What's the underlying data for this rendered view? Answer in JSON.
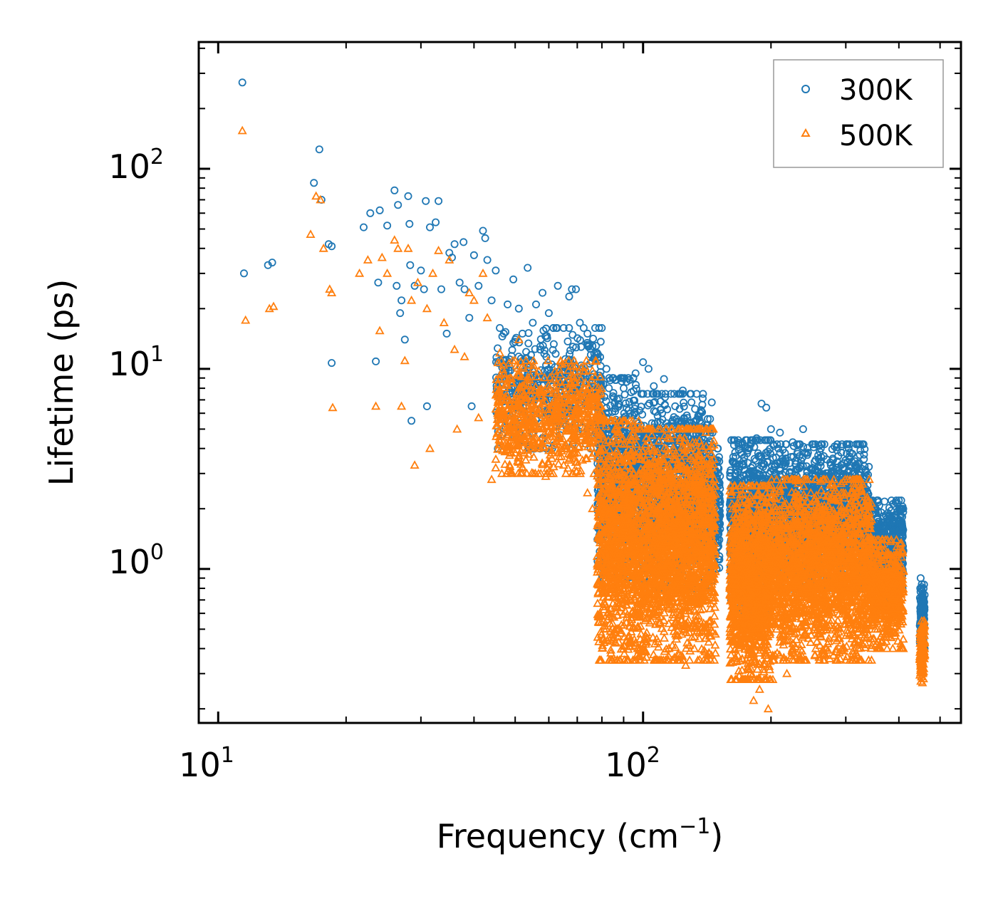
{
  "chart_data": {
    "type": "scatter",
    "xscale": "log",
    "yscale": "log",
    "xlim": [
      9,
      560
    ],
    "ylim": [
      0.17,
      430
    ],
    "xlabel": {
      "text": "Frequency (cm",
      "sup": "−1",
      "suffix": ")"
    },
    "ylabel": "Lifetime (ps)",
    "x_ticks": [
      {
        "base": "10",
        "exp": "1",
        "value": 10
      },
      {
        "base": "10",
        "exp": "2",
        "value": 100
      }
    ],
    "y_ticks": [
      {
        "base": "10",
        "exp": "0",
        "value": 1
      },
      {
        "base": "10",
        "exp": "1",
        "value": 10
      },
      {
        "base": "10",
        "exp": "2",
        "value": 100
      }
    ],
    "legend": {
      "position": "top-right",
      "entries": [
        "300K",
        "500K"
      ]
    },
    "series": [
      {
        "name": "300K",
        "marker": "circle",
        "color": "#1f77b4",
        "points": [
          [
            11.4,
            270
          ],
          [
            11.5,
            30
          ],
          [
            13.1,
            33
          ],
          [
            13.4,
            34
          ],
          [
            16.8,
            85
          ],
          [
            17.3,
            125
          ],
          [
            17.5,
            70
          ],
          [
            18.2,
            42
          ],
          [
            18.5,
            41
          ],
          [
            18.5,
            10.7
          ],
          [
            22,
            51
          ],
          [
            22.8,
            60
          ],
          [
            23.5,
            10.9
          ],
          [
            23.8,
            27
          ],
          [
            24,
            62
          ],
          [
            25,
            52
          ],
          [
            26,
            78
          ],
          [
            26.3,
            26
          ],
          [
            26.5,
            66
          ],
          [
            26.8,
            19
          ],
          [
            27,
            22
          ],
          [
            27.5,
            14
          ],
          [
            28,
            73
          ],
          [
            28.2,
            53
          ],
          [
            28.3,
            33
          ],
          [
            28.5,
            5.5
          ],
          [
            29,
            26
          ],
          [
            30,
            31
          ],
          [
            30.5,
            25
          ],
          [
            30.8,
            69
          ],
          [
            31,
            6.5
          ],
          [
            31.5,
            51
          ],
          [
            32.5,
            54
          ],
          [
            33,
            69
          ],
          [
            33.5,
            25
          ],
          [
            34.5,
            15
          ],
          [
            35,
            38
          ],
          [
            35.5,
            36
          ],
          [
            36,
            42
          ],
          [
            37,
            27
          ],
          [
            37.8,
            43
          ],
          [
            38,
            25
          ],
          [
            39,
            18
          ],
          [
            39.5,
            6.5
          ],
          [
            40,
            37
          ],
          [
            41,
            26
          ],
          [
            42,
            49
          ],
          [
            42.5,
            45
          ],
          [
            43,
            35
          ],
          [
            44,
            22
          ],
          [
            45,
            31
          ],
          [
            46,
            16
          ],
          [
            47,
            15
          ],
          [
            48,
            21
          ],
          [
            49.5,
            28
          ],
          [
            51,
            20
          ],
          [
            52,
            15
          ],
          [
            53.5,
            32
          ],
          [
            55,
            17
          ],
          [
            56,
            21
          ],
          [
            58,
            24
          ],
          [
            60,
            19
          ],
          [
            61.5,
            16
          ],
          [
            63,
            26
          ],
          [
            65,
            16
          ],
          [
            67,
            23
          ],
          [
            68,
            25
          ],
          [
            69.5,
            25
          ],
          [
            71,
            17
          ],
          [
            74,
            15
          ],
          [
            76,
            13
          ],
          [
            78,
            12
          ],
          [
            82,
            10
          ],
          [
            86,
            8.8
          ],
          [
            90,
            8
          ],
          [
            96,
            9.5
          ],
          [
            100,
            10.8
          ],
          [
            103,
            10
          ],
          [
            106,
            8.2
          ],
          [
            112,
            8.9
          ],
          [
            119,
            6.5
          ],
          [
            124,
            7.8
          ],
          [
            130,
            6.8
          ],
          [
            136,
            5.5
          ],
          [
            144,
            4.8
          ],
          [
            148,
            3.5
          ],
          [
            160,
            2.1
          ],
          [
            165,
            2.5
          ],
          [
            170,
            3.8
          ],
          [
            178,
            4
          ],
          [
            185,
            4.5
          ],
          [
            190,
            6.7
          ],
          [
            195,
            6.4
          ],
          [
            200,
            5
          ],
          [
            210,
            4.8
          ],
          [
            225,
            4.3
          ],
          [
            238,
            5
          ],
          [
            250,
            4.2
          ],
          [
            262,
            4
          ],
          [
            280,
            3.5
          ],
          [
            295,
            3.2
          ],
          [
            315,
            3
          ],
          [
            335,
            2.9
          ],
          [
            355,
            1.8
          ],
          [
            372,
            1.1
          ],
          [
            390,
            1
          ],
          [
            405,
            2.2
          ],
          [
            408,
            2.05
          ],
          [
            450,
            0.9
          ],
          [
            455,
            0.75
          ]
        ]
      },
      {
        "name": "500K",
        "marker": "triangle",
        "color": "#ff7f0e",
        "points": [
          [
            11.4,
            155
          ],
          [
            11.6,
            17.5
          ],
          [
            13.2,
            20
          ],
          [
            13.5,
            20.5
          ],
          [
            16.5,
            47
          ],
          [
            17,
            73
          ],
          [
            17.4,
            70
          ],
          [
            17.7,
            40
          ],
          [
            18.3,
            25
          ],
          [
            18.5,
            24
          ],
          [
            18.6,
            6.4
          ],
          [
            21.5,
            30
          ],
          [
            22.5,
            35
          ],
          [
            23.5,
            6.5
          ],
          [
            24,
            15.5
          ],
          [
            24.3,
            36
          ],
          [
            25,
            30
          ],
          [
            26,
            44
          ],
          [
            26.5,
            40
          ],
          [
            27,
            6.5
          ],
          [
            27.5,
            11
          ],
          [
            28,
            40
          ],
          [
            28.5,
            22
          ],
          [
            29,
            3.3
          ],
          [
            29.5,
            27
          ],
          [
            31,
            20
          ],
          [
            31.5,
            4
          ],
          [
            32,
            30
          ],
          [
            33,
            39
          ],
          [
            34,
            17
          ],
          [
            35,
            35
          ],
          [
            36,
            12.5
          ],
          [
            36.5,
            5
          ],
          [
            38,
            11.5
          ],
          [
            39,
            24
          ],
          [
            40,
            22
          ],
          [
            41,
            5.7
          ],
          [
            42,
            30
          ],
          [
            43,
            18
          ],
          [
            44,
            2.8
          ],
          [
            45,
            3.2
          ],
          [
            46,
            12
          ],
          [
            47,
            9.5
          ],
          [
            48,
            4.6
          ],
          [
            50,
            3.8
          ],
          [
            51,
            14
          ],
          [
            52,
            3.2
          ],
          [
            53.5,
            8.8
          ],
          [
            55,
            5
          ],
          [
            57,
            6
          ],
          [
            59,
            2.9
          ],
          [
            61,
            3.8
          ],
          [
            63,
            4.5
          ],
          [
            65,
            3.3
          ],
          [
            67,
            8
          ],
          [
            70,
            6
          ],
          [
            72,
            3.5
          ],
          [
            74,
            2.4
          ],
          [
            76,
            2
          ],
          [
            79,
            1.2
          ],
          [
            81,
            0.5
          ],
          [
            84,
            0.38
          ],
          [
            88,
            0.35
          ],
          [
            92,
            3.5
          ],
          [
            97,
            0.4
          ],
          [
            102,
            0.45
          ],
          [
            106,
            3.2
          ],
          [
            110,
            0.35
          ],
          [
            115,
            0.4
          ],
          [
            120,
            2.8
          ],
          [
            126,
            0.33
          ],
          [
            132,
            0.4
          ],
          [
            140,
            0.45
          ],
          [
            148,
            0.38
          ],
          [
            160,
            0.8
          ],
          [
            167,
            1.5
          ],
          [
            175,
            0.35
          ],
          [
            182,
            0.22
          ],
          [
            188,
            0.25
          ],
          [
            192,
            0.9
          ],
          [
            197,
            0.2
          ],
          [
            202,
            0.28
          ],
          [
            210,
            2.5
          ],
          [
            218,
            0.3
          ],
          [
            228,
            2.3
          ],
          [
            236,
            0.35
          ],
          [
            245,
            2
          ],
          [
            255,
            0.4
          ],
          [
            270,
            0.4
          ],
          [
            290,
            0.45
          ],
          [
            310,
            1.5
          ],
          [
            330,
            0.6
          ],
          [
            345,
            0.35
          ],
          [
            360,
            0.4
          ],
          [
            375,
            0.75
          ],
          [
            395,
            1.2
          ],
          [
            405,
            1.35
          ],
          [
            448,
            0.48
          ],
          [
            455,
            0.3
          ]
        ]
      }
    ]
  }
}
